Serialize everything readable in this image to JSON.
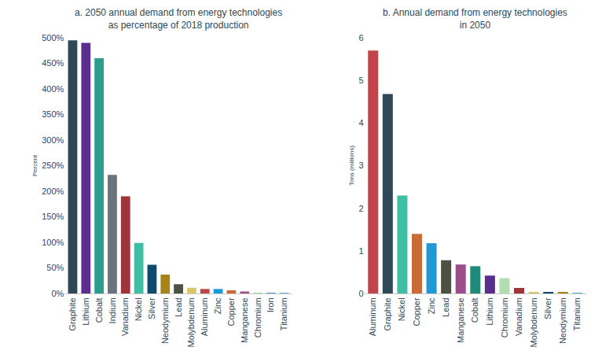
{
  "chart_data": [
    {
      "type": "bar",
      "title": "a. 2050 annual demand from energy technologies\nas percentage of 2018 production",
      "y_label": "Percent",
      "categories": [
        "Graphite",
        "Lithium",
        "Cobalt",
        "Indium",
        "Vanadium",
        "Nickel",
        "Silver",
        "Neodymium",
        "Lead",
        "Molybdenum",
        "Aluminum",
        "Zinc",
        "Copper",
        "Manganese",
        "Chromium",
        "Iron",
        "Titanium"
      ],
      "values": [
        495,
        490,
        460,
        232,
        190,
        99,
        56,
        37,
        18,
        11,
        9,
        9,
        6,
        4,
        1,
        1,
        1
      ],
      "colors": [
        "#2f4858",
        "#5b2d8e",
        "#2a9d8f",
        "#6b747b",
        "#9e3539",
        "#3dbfa3",
        "#0d4a6b",
        "#a6841a",
        "#4c5142",
        "#d9c56a",
        "#c0454a",
        "#1f9ad6",
        "#c96b36",
        "#9b4f8a",
        "#a8d8a8",
        "#5b8fd6",
        "#6aa9d8"
      ],
      "ylim": [
        0,
        500
      ],
      "yticks": [
        {
          "value": 0,
          "label": "0%"
        },
        {
          "value": 50,
          "label": "50%"
        },
        {
          "value": 100,
          "label": "100%"
        },
        {
          "value": 150,
          "label": "150%"
        },
        {
          "value": 200,
          "label": "200%"
        },
        {
          "value": 250,
          "label": "250%"
        },
        {
          "value": 300,
          "label": "300%"
        },
        {
          "value": 350,
          "label": "350%"
        },
        {
          "value": 400,
          "label": "400%"
        },
        {
          "value": 450,
          "label": "450%"
        },
        {
          "value": 500,
          "label": "500%"
        }
      ],
      "grid": false
    },
    {
      "type": "bar",
      "title": "b. Annual demand from energy technologies\nin 2050",
      "y_label": "Tons (millions)",
      "categories": [
        "Aluminum",
        "Graphite",
        "Nickel",
        "Copper",
        "Zinc",
        "Lead",
        "Manganese",
        "Cobalt",
        "Lithium",
        "Chromium",
        "Vanadium",
        "Molybdenum",
        "Silver",
        "Neodymium",
        "Titanium"
      ],
      "values": [
        5.7,
        4.68,
        2.3,
        1.4,
        1.18,
        0.78,
        0.68,
        0.64,
        0.42,
        0.36,
        0.13,
        0.03,
        0.025,
        0.02,
        0.01
      ],
      "colors": [
        "#c0454a",
        "#2f4858",
        "#3dbfa3",
        "#c96b36",
        "#1f9ad6",
        "#4c5142",
        "#9b4f8a",
        "#1f8a7a",
        "#5b2d8e",
        "#b3dcb0",
        "#9e3539",
        "#d9c56a",
        "#0d4a6b",
        "#a6841a",
        "#6aa9d8"
      ],
      "ylim": [
        0,
        6
      ],
      "yticks": [
        0,
        1,
        2,
        3,
        4,
        5,
        6
      ],
      "grid": false
    }
  ]
}
